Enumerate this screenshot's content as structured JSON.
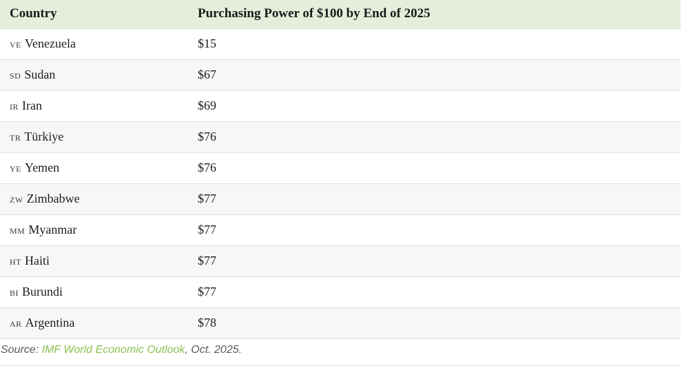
{
  "table": {
    "columns": [
      {
        "label": "Country"
      },
      {
        "label": "Purchasing Power of $100 by End of 2025"
      }
    ],
    "rows": [
      {
        "code": "VE",
        "country": "Venezuela",
        "value": "$15"
      },
      {
        "code": "SD",
        "country": "Sudan",
        "value": "$67"
      },
      {
        "code": "IR",
        "country": "Iran",
        "value": "$69"
      },
      {
        "code": "TR",
        "country": "Türkiye",
        "value": "$76"
      },
      {
        "code": "YE",
        "country": "Yemen",
        "value": "$76"
      },
      {
        "code": "ZW",
        "country": "Zimbabwe",
        "value": "$77"
      },
      {
        "code": "MM",
        "country": "Myanmar",
        "value": "$77"
      },
      {
        "code": "HT",
        "country": "Haiti",
        "value": "$77"
      },
      {
        "code": "BI",
        "country": "Burundi",
        "value": "$77"
      },
      {
        "code": "AR",
        "country": "Argentina",
        "value": "$78"
      }
    ]
  },
  "source": {
    "prefix": "Source: ",
    "link_label": "IMF World Economic Outlook",
    "suffix": ", Oct. 2025."
  },
  "colors": {
    "header_background": "#e5eedb",
    "row_alternate_background": "#f7f7f7",
    "row_divider": "#e0e0e0",
    "text": "#1c1c1c",
    "source_text": "#595959",
    "source_link": "#8cc152"
  }
}
